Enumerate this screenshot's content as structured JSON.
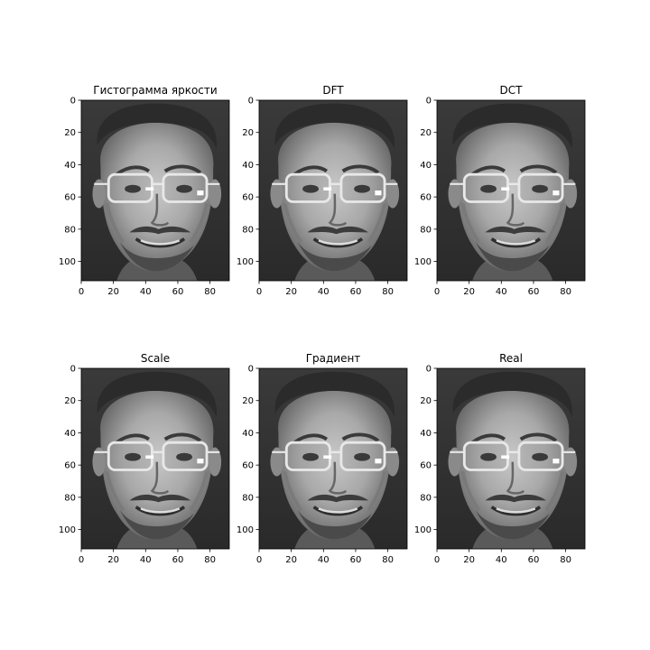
{
  "figure": {
    "panels": [
      {
        "title": "Гистограмма яркости",
        "image": "grayscale face photo of a smiling man with glasses"
      },
      {
        "title": "DFT",
        "image": "grayscale face photo of a smiling man with glasses"
      },
      {
        "title": "DCT",
        "image": "grayscale face photo of a smiling man with glasses"
      },
      {
        "title": "Scale",
        "image": "grayscale face photo of a smiling man with glasses"
      },
      {
        "title": "Градиент",
        "image": "grayscale face photo of a smiling man with glasses"
      },
      {
        "title": "Real",
        "image": "grayscale face photo of a smiling man with glasses"
      }
    ],
    "x_ticks": [
      "0",
      "20",
      "40",
      "60",
      "80"
    ],
    "y_ticks": [
      "0",
      "20",
      "40",
      "60",
      "80",
      "100"
    ]
  }
}
